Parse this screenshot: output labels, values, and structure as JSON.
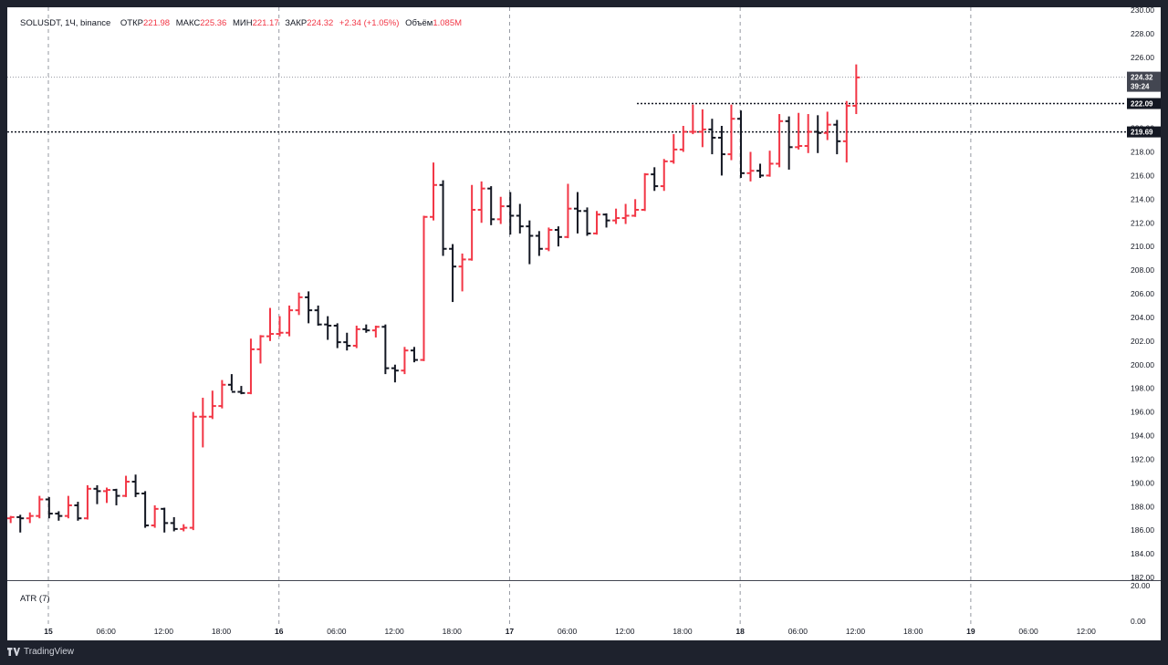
{
  "legend": {
    "symbol": "SOLUSDT, 1Ч, binance",
    "open_label": "ОТКР",
    "open": "221.98",
    "high_label": "МАКС",
    "high": "225.36",
    "low_label": "МИН",
    "low": "221.17",
    "close_label": "ЗАКР",
    "close": "224.32",
    "change": "+2.34 (+1.05%)",
    "volume_label": "Объём",
    "volume": "1.085M"
  },
  "indicator_label": "ATR (7)",
  "footer_brand": "TradingView",
  "colors": {
    "up": "#f23645",
    "down": "#131722",
    "background": "#ffffff",
    "frame": "#1e222d"
  },
  "price_badges": [
    {
      "price": "224.32",
      "sub": "39:24",
      "color": "#434651"
    },
    {
      "price": "222.09",
      "sub": "",
      "color": "#131722"
    },
    {
      "price": "219.69",
      "sub": "",
      "color": "#131722"
    }
  ],
  "chart_data": {
    "type": "ohlc",
    "ylim": [
      182,
      230
    ],
    "price_ticks": [
      "230.00",
      "228.00",
      "226.00",
      "224.00",
      "222.00",
      "220.00",
      "218.00",
      "216.00",
      "214.00",
      "212.00",
      "210.00",
      "208.00",
      "206.00",
      "204.00",
      "202.00",
      "200.00",
      "198.00",
      "196.00",
      "194.00",
      "192.00",
      "190.00",
      "188.00",
      "186.00",
      "184.00",
      "182.00"
    ],
    "atr_ticks": [
      "20.00",
      "0.00"
    ],
    "time_labels": [
      {
        "label": "15",
        "day": true
      },
      {
        "label": "06:00",
        "day": false
      },
      {
        "label": "12:00",
        "day": false
      },
      {
        "label": "18:00",
        "day": false
      },
      {
        "label": "16",
        "day": true
      },
      {
        "label": "06:00",
        "day": false
      },
      {
        "label": "12:00",
        "day": false
      },
      {
        "label": "18:00",
        "day": false
      },
      {
        "label": "17",
        "day": true
      },
      {
        "label": "06:00",
        "day": false
      },
      {
        "label": "12:00",
        "day": false
      },
      {
        "label": "18:00",
        "day": false
      },
      {
        "label": "18",
        "day": true
      },
      {
        "label": "06:00",
        "day": false
      },
      {
        "label": "12:00",
        "day": false
      },
      {
        "label": "18:00",
        "day": false
      },
      {
        "label": "19",
        "day": true
      },
      {
        "label": "06:00",
        "day": false
      },
      {
        "label": "12:00",
        "day": false
      }
    ],
    "bars": [
      [
        187.0,
        187.2,
        186.6,
        187.1
      ],
      [
        187.1,
        187.3,
        185.8,
        187.0
      ],
      [
        187.0,
        187.5,
        186.6,
        187.2
      ],
      [
        187.2,
        188.9,
        187.0,
        188.6
      ],
      [
        188.6,
        188.8,
        187.0,
        187.4
      ],
      [
        187.4,
        187.6,
        186.8,
        187.2
      ],
      [
        187.2,
        188.9,
        187.0,
        188.1
      ],
      [
        188.1,
        188.4,
        186.8,
        187.0
      ],
      [
        187.0,
        189.8,
        186.9,
        189.5
      ],
      [
        189.5,
        189.8,
        188.2,
        189.3
      ],
      [
        189.3,
        189.6,
        188.3,
        189.4
      ],
      [
        189.4,
        189.5,
        188.1,
        188.9
      ],
      [
        188.9,
        190.6,
        188.8,
        190.1
      ],
      [
        190.1,
        190.7,
        188.8,
        189.1
      ],
      [
        189.1,
        189.3,
        186.2,
        186.4
      ],
      [
        186.4,
        188.1,
        186.2,
        187.8
      ],
      [
        187.8,
        187.9,
        185.8,
        186.6
      ],
      [
        186.6,
        187.1,
        185.9,
        186.1
      ],
      [
        186.1,
        186.5,
        185.9,
        186.2
      ],
      [
        186.2,
        196.0,
        186.0,
        195.6
      ],
      [
        195.6,
        197.2,
        193.0,
        195.6
      ],
      [
        195.6,
        197.8,
        195.4,
        196.5
      ],
      [
        196.5,
        198.7,
        196.3,
        198.3
      ],
      [
        198.3,
        199.2,
        197.8,
        197.7
      ],
      [
        197.7,
        198.2,
        197.5,
        197.6
      ],
      [
        197.6,
        202.2,
        197.5,
        201.3
      ],
      [
        201.3,
        202.5,
        200.1,
        202.4
      ],
      [
        202.4,
        204.8,
        202.0,
        202.6
      ],
      [
        202.6,
        204.1,
        202.4,
        202.7
      ],
      [
        202.7,
        205.0,
        202.4,
        204.6
      ],
      [
        204.6,
        206.1,
        204.2,
        205.7
      ],
      [
        205.7,
        206.2,
        203.5,
        204.6
      ],
      [
        204.6,
        205.0,
        203.3,
        203.4
      ],
      [
        203.4,
        204.1,
        202.1,
        203.3
      ],
      [
        203.3,
        203.5,
        201.4,
        201.9
      ],
      [
        201.9,
        202.7,
        201.2,
        201.6
      ],
      [
        201.6,
        203.3,
        201.4,
        203.0
      ],
      [
        203.0,
        203.4,
        202.7,
        202.9
      ],
      [
        202.9,
        203.3,
        202.3,
        203.2
      ],
      [
        203.2,
        203.4,
        199.2,
        199.7
      ],
      [
        199.7,
        200.0,
        198.5,
        199.5
      ],
      [
        199.5,
        201.5,
        199.2,
        201.2
      ],
      [
        201.2,
        201.5,
        200.2,
        200.4
      ],
      [
        200.4,
        212.6,
        200.3,
        212.5
      ],
      [
        212.5,
        217.1,
        212.2,
        215.2
      ],
      [
        215.2,
        215.6,
        209.2,
        209.8
      ],
      [
        209.8,
        210.2,
        205.3,
        208.3
      ],
      [
        208.3,
        209.4,
        206.2,
        208.9
      ],
      [
        208.9,
        215.2,
        208.8,
        213.1
      ],
      [
        213.1,
        215.5,
        212.0,
        214.9
      ],
      [
        214.9,
        215.1,
        211.8,
        212.3
      ],
      [
        212.3,
        214.2,
        211.9,
        213.4
      ],
      [
        213.4,
        214.6,
        211.0,
        212.6
      ],
      [
        212.6,
        213.6,
        211.1,
        211.7
      ],
      [
        211.7,
        212.2,
        208.5,
        210.9
      ],
      [
        210.9,
        211.3,
        209.2,
        209.8
      ],
      [
        209.8,
        211.6,
        209.6,
        211.4
      ],
      [
        211.4,
        211.7,
        210.0,
        210.8
      ],
      [
        210.8,
        215.3,
        210.7,
        213.2
      ],
      [
        213.2,
        214.6,
        211.1,
        213.0
      ],
      [
        213.0,
        213.3,
        210.9,
        211.1
      ],
      [
        211.1,
        213.0,
        211.0,
        212.7
      ],
      [
        212.7,
        212.8,
        211.6,
        212.2
      ],
      [
        212.2,
        213.2,
        211.9,
        212.4
      ],
      [
        212.4,
        213.6,
        211.9,
        212.6
      ],
      [
        212.6,
        214.0,
        212.5,
        213.1
      ],
      [
        213.1,
        216.2,
        213.0,
        216.1
      ],
      [
        216.1,
        216.7,
        214.7,
        215.1
      ],
      [
        215.1,
        217.4,
        214.7,
        217.2
      ],
      [
        217.2,
        219.5,
        217.0,
        218.2
      ],
      [
        218.2,
        220.2,
        218.0,
        219.7
      ],
      [
        219.7,
        222.0,
        219.5,
        219.7
      ],
      [
        219.7,
        221.6,
        218.4,
        219.9
      ],
      [
        219.9,
        220.8,
        217.8,
        219.2
      ],
      [
        219.2,
        220.2,
        216.0,
        217.8
      ],
      [
        217.8,
        222.0,
        217.3,
        220.8
      ],
      [
        220.8,
        221.5,
        215.8,
        216.2
      ],
      [
        216.2,
        218.0,
        215.5,
        216.4
      ],
      [
        216.4,
        217.0,
        215.8,
        216.0
      ],
      [
        216.0,
        218.1,
        215.9,
        217.0
      ],
      [
        217.0,
        221.2,
        216.7,
        220.6
      ],
      [
        220.6,
        221.0,
        216.5,
        218.4
      ],
      [
        218.4,
        221.3,
        218.2,
        218.5
      ],
      [
        218.5,
        221.2,
        217.9,
        219.7
      ],
      [
        219.7,
        221.1,
        217.9,
        219.6
      ],
      [
        219.6,
        221.4,
        219.0,
        220.3
      ],
      [
        220.3,
        220.7,
        217.8,
        218.9
      ],
      [
        218.9,
        222.3,
        217.1,
        221.9
      ],
      [
        221.9,
        225.4,
        221.2,
        224.3
      ]
    ],
    "levels": [
      224.32,
      222.09,
      219.69
    ]
  }
}
